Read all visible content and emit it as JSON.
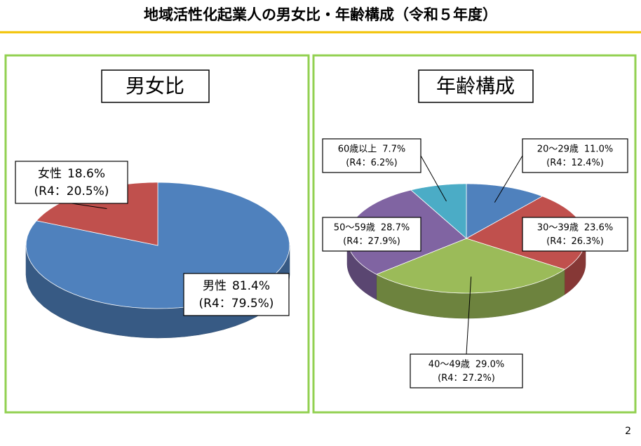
{
  "title": "地域活性化起業人の男女比・年齢構成（令和５年度）",
  "page_number": "2",
  "chart_data": [
    {
      "type": "pie",
      "title": "男女比",
      "categories": [
        "男性",
        "女性"
      ],
      "values": [
        81.4,
        18.6
      ],
      "value_labels": [
        "81.4%",
        "18.6%"
      ],
      "previous_labels": [
        "(R4：79.5%)",
        "(R4：20.5%)"
      ],
      "colors": [
        "#4f81bd",
        "#c0504d"
      ]
    },
    {
      "type": "pie",
      "title": "年齢構成",
      "categories": [
        "20～29歳",
        "30～39歳",
        "40～49歳",
        "50～59歳",
        "60歳以上"
      ],
      "values": [
        11.0,
        23.6,
        29.0,
        28.7,
        7.7
      ],
      "value_labels": [
        "11.0%",
        "23.6%",
        "29.0%",
        "28.7%",
        "7.7%"
      ],
      "previous_labels": [
        "(R4：12.4%)",
        "(R4：26.3%)",
        "(R4：27.2%)",
        "(R4：27.9%)",
        "(R4：6.2%)"
      ],
      "colors": [
        "#4f81bd",
        "#c0504d",
        "#9bbb59",
        "#8064a2",
        "#4bacc6"
      ]
    }
  ]
}
